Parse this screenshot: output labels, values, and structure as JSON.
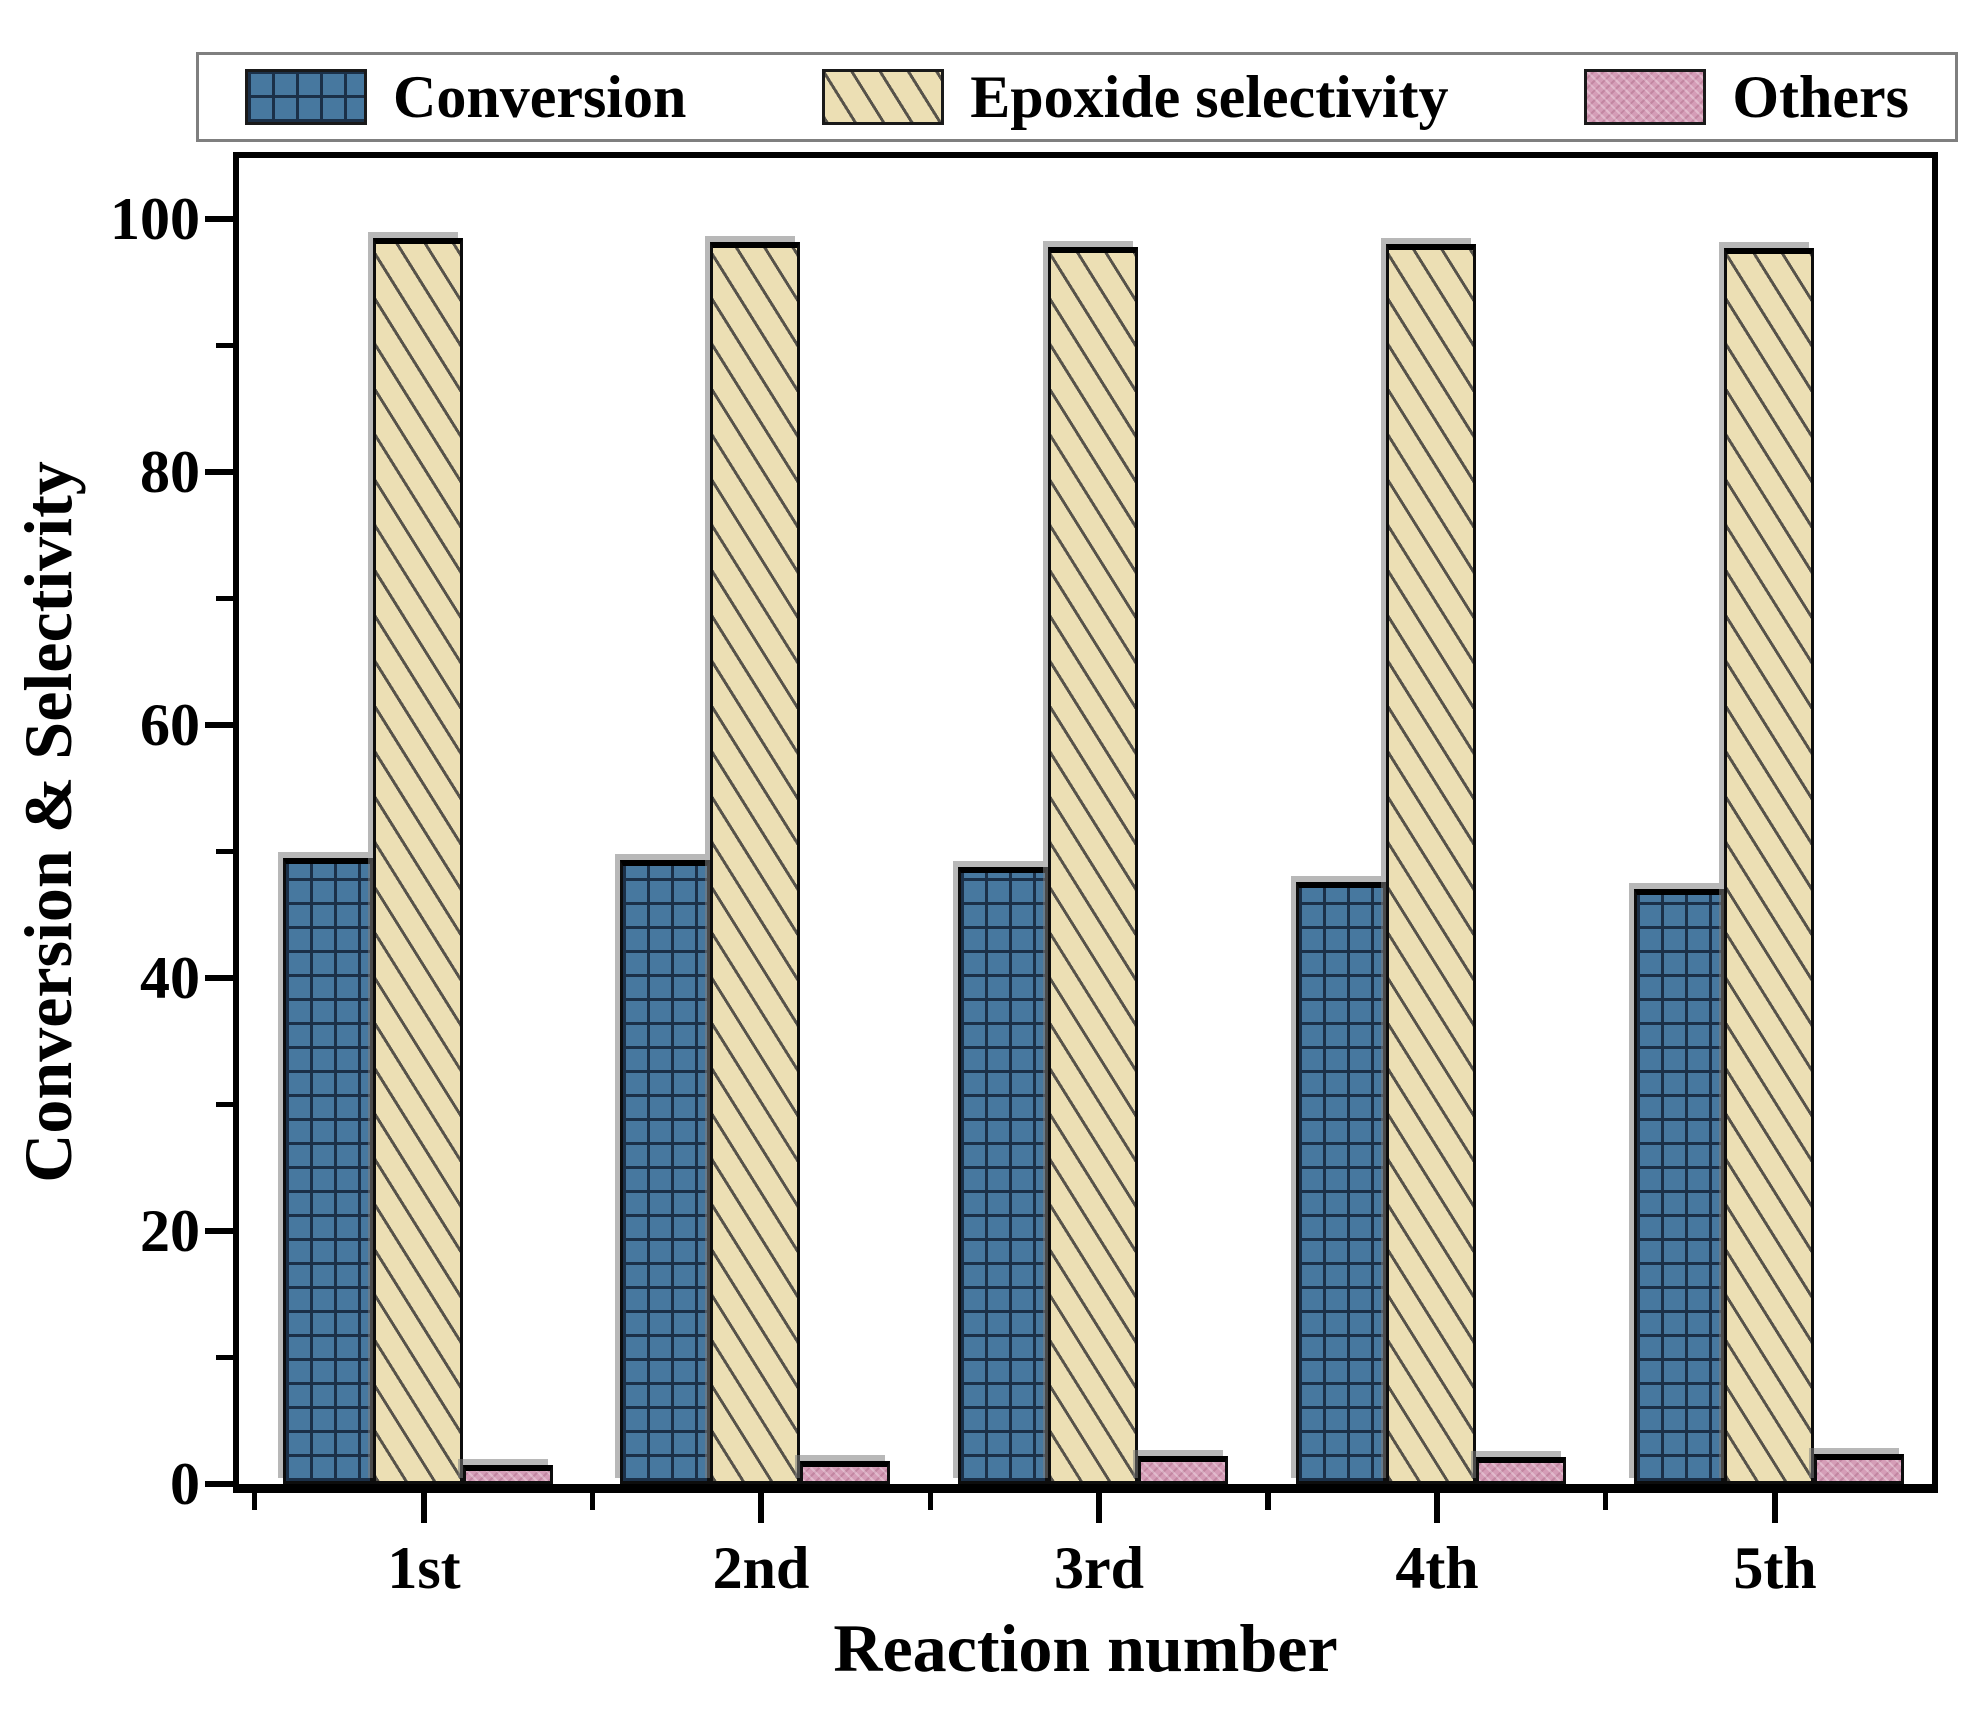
{
  "chart_data": {
    "type": "bar",
    "title": "",
    "xlabel": "Reaction number",
    "ylabel": "Conversion & Selectivity",
    "categories": [
      "1st",
      "2nd",
      "3rd",
      "4th",
      "5th"
    ],
    "series": [
      {
        "name": "Conversion",
        "values": [
          49.5,
          49.3,
          48.8,
          47.6,
          47.0
        ],
        "fill_color": "#47789f",
        "pattern": "crosshatch-grid",
        "pattern_line_color": "#1b3048",
        "edge_color": "#000000"
      },
      {
        "name": "Epoxide selectivity",
        "values": [
          98.5,
          98.2,
          97.8,
          98.0,
          97.7
        ],
        "fill_color": "#ecdfb4",
        "pattern": "diagonal-hatch",
        "pattern_line_color": "#57534a",
        "edge_color": "#1a1a1a"
      },
      {
        "name": "Others",
        "values": [
          1.5,
          1.8,
          2.2,
          2.1,
          2.4
        ],
        "fill_color": "#d59db7",
        "pattern": "fine-crosshatch",
        "pattern_line_color": "#a05a78",
        "edge_color": "#000000"
      }
    ],
    "yticks": [
      0,
      20,
      40,
      60,
      80,
      100
    ],
    "y_minor_step": 10,
    "ylim": [
      0,
      104.8
    ],
    "grid": false,
    "legend_position": "top",
    "legend_border_color": "#7f7f7f",
    "frame_color": "#000000",
    "background_color": "#ffffff"
  }
}
